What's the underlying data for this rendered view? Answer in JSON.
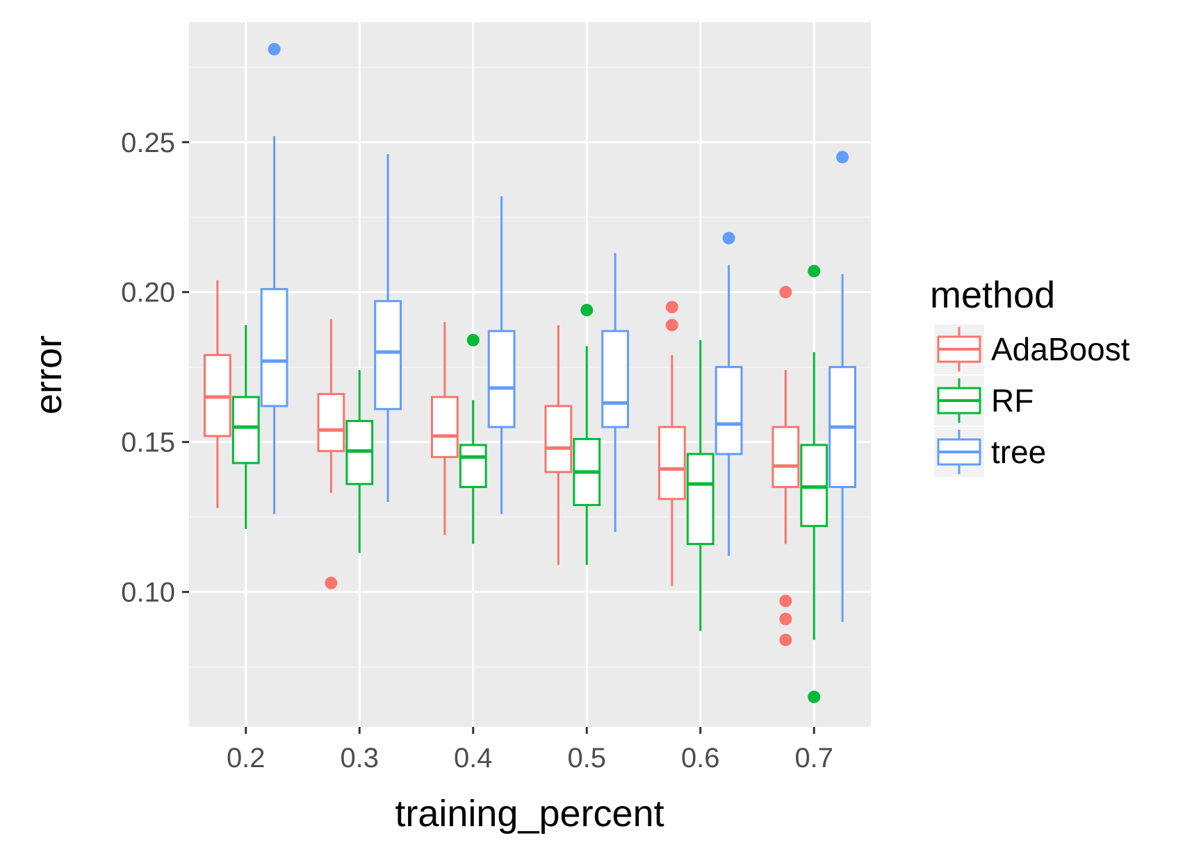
{
  "chart_data": {
    "type": "boxplot",
    "xlabel": "training_percent",
    "ylabel": "error",
    "categories": [
      "0.2",
      "0.3",
      "0.4",
      "0.5",
      "0.6",
      "0.7"
    ],
    "ylim": [
      0.055,
      0.29
    ],
    "yticks": [
      0.1,
      0.15,
      0.2,
      0.25
    ],
    "ytick_labels": [
      "0.10",
      "0.15",
      "0.20",
      "0.25"
    ],
    "grid": true,
    "legend": {
      "title": "method",
      "position": "right",
      "entries": [
        "AdaBoost",
        "RF",
        "tree"
      ]
    },
    "series": [
      {
        "name": "AdaBoost",
        "color": "#F8766D",
        "boxes": [
          {
            "min": 0.128,
            "q1": 0.152,
            "median": 0.165,
            "q3": 0.179,
            "max": 0.204,
            "outliers": []
          },
          {
            "min": 0.133,
            "q1": 0.147,
            "median": 0.154,
            "q3": 0.166,
            "max": 0.191,
            "outliers": [
              0.103
            ]
          },
          {
            "min": 0.119,
            "q1": 0.145,
            "median": 0.152,
            "q3": 0.165,
            "max": 0.19,
            "outliers": []
          },
          {
            "min": 0.109,
            "q1": 0.14,
            "median": 0.148,
            "q3": 0.162,
            "max": 0.189,
            "outliers": []
          },
          {
            "min": 0.102,
            "q1": 0.131,
            "median": 0.141,
            "q3": 0.155,
            "max": 0.179,
            "outliers": [
              0.195,
              0.189
            ]
          },
          {
            "min": 0.116,
            "q1": 0.135,
            "median": 0.142,
            "q3": 0.155,
            "max": 0.174,
            "outliers": [
              0.2,
              0.097,
              0.091,
              0.084
            ]
          }
        ]
      },
      {
        "name": "RF",
        "color": "#00BA38",
        "boxes": [
          {
            "min": 0.121,
            "q1": 0.143,
            "median": 0.155,
            "q3": 0.165,
            "max": 0.189,
            "outliers": []
          },
          {
            "min": 0.113,
            "q1": 0.136,
            "median": 0.147,
            "q3": 0.157,
            "max": 0.174,
            "outliers": []
          },
          {
            "min": 0.116,
            "q1": 0.135,
            "median": 0.145,
            "q3": 0.149,
            "max": 0.164,
            "outliers": [
              0.184
            ]
          },
          {
            "min": 0.109,
            "q1": 0.129,
            "median": 0.14,
            "q3": 0.151,
            "max": 0.182,
            "outliers": [
              0.194
            ]
          },
          {
            "min": 0.087,
            "q1": 0.116,
            "median": 0.136,
            "q3": 0.146,
            "max": 0.184,
            "outliers": []
          },
          {
            "min": 0.084,
            "q1": 0.122,
            "median": 0.135,
            "q3": 0.149,
            "max": 0.18,
            "outliers": [
              0.207,
              0.065
            ]
          }
        ]
      },
      {
        "name": "tree",
        "color": "#619CFF",
        "boxes": [
          {
            "min": 0.126,
            "q1": 0.162,
            "median": 0.177,
            "q3": 0.201,
            "max": 0.252,
            "outliers": [
              0.281
            ]
          },
          {
            "min": 0.13,
            "q1": 0.161,
            "median": 0.18,
            "q3": 0.197,
            "max": 0.246,
            "outliers": []
          },
          {
            "min": 0.126,
            "q1": 0.155,
            "median": 0.168,
            "q3": 0.187,
            "max": 0.232,
            "outliers": []
          },
          {
            "min": 0.12,
            "q1": 0.155,
            "median": 0.163,
            "q3": 0.187,
            "max": 0.213,
            "outliers": []
          },
          {
            "min": 0.112,
            "q1": 0.146,
            "median": 0.156,
            "q3": 0.175,
            "max": 0.209,
            "outliers": [
              0.218
            ]
          },
          {
            "min": 0.09,
            "q1": 0.135,
            "median": 0.155,
            "q3": 0.175,
            "max": 0.206,
            "outliers": [
              0.245
            ]
          }
        ]
      }
    ]
  }
}
